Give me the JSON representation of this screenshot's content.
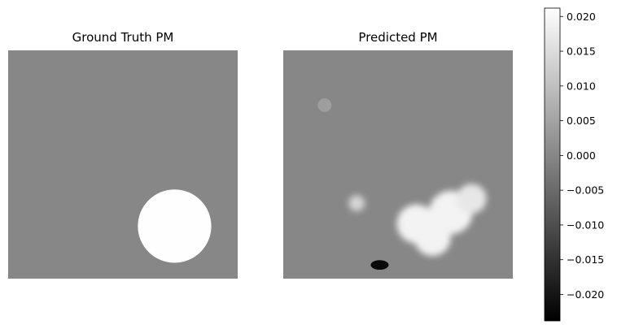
{
  "chart_data": [
    {
      "type": "heatmap",
      "title": "Ground Truth PM",
      "colormap": "gray",
      "axes": "off",
      "background_value": 0.0,
      "shapes": [
        {
          "kind": "disk",
          "value": 0.021,
          "center_frac": [
            0.725,
            0.77
          ],
          "radius_frac": 0.16
        }
      ]
    },
    {
      "type": "heatmap",
      "title": "Predicted PM",
      "colormap": "gray",
      "axes": "off",
      "background_value": 0.0,
      "blobs": [
        {
          "value": 0.019,
          "center_frac": [
            0.58,
            0.76
          ],
          "radius_frac": 0.085
        },
        {
          "value": 0.019,
          "center_frac": [
            0.73,
            0.71
          ],
          "radius_frac": 0.095
        },
        {
          "value": 0.019,
          "center_frac": [
            0.65,
            0.82
          ],
          "radius_frac": 0.08
        },
        {
          "value": 0.017,
          "center_frac": [
            0.82,
            0.65
          ],
          "radius_frac": 0.065
        },
        {
          "value": 0.014,
          "center_frac": [
            0.32,
            0.67
          ],
          "radius_frac": 0.035
        },
        {
          "value": -0.022,
          "center_frac": [
            0.42,
            0.94
          ],
          "radius_frac": 0.03
        },
        {
          "value": 0.004,
          "center_frac": [
            0.18,
            0.24
          ],
          "radius_frac": 0.03
        }
      ]
    }
  ],
  "colorbar": {
    "colormap": "gray",
    "vmin": -0.0238,
    "vmax": 0.0212,
    "ticks": [
      0.02,
      0.015,
      0.01,
      0.005,
      0.0,
      -0.005,
      -0.01,
      -0.015,
      -0.02
    ],
    "tick_labels": [
      "0.020",
      "0.015",
      "0.010",
      "0.005",
      "0.000",
      "−0.005",
      "−0.010",
      "−0.015",
      "−0.020"
    ]
  }
}
